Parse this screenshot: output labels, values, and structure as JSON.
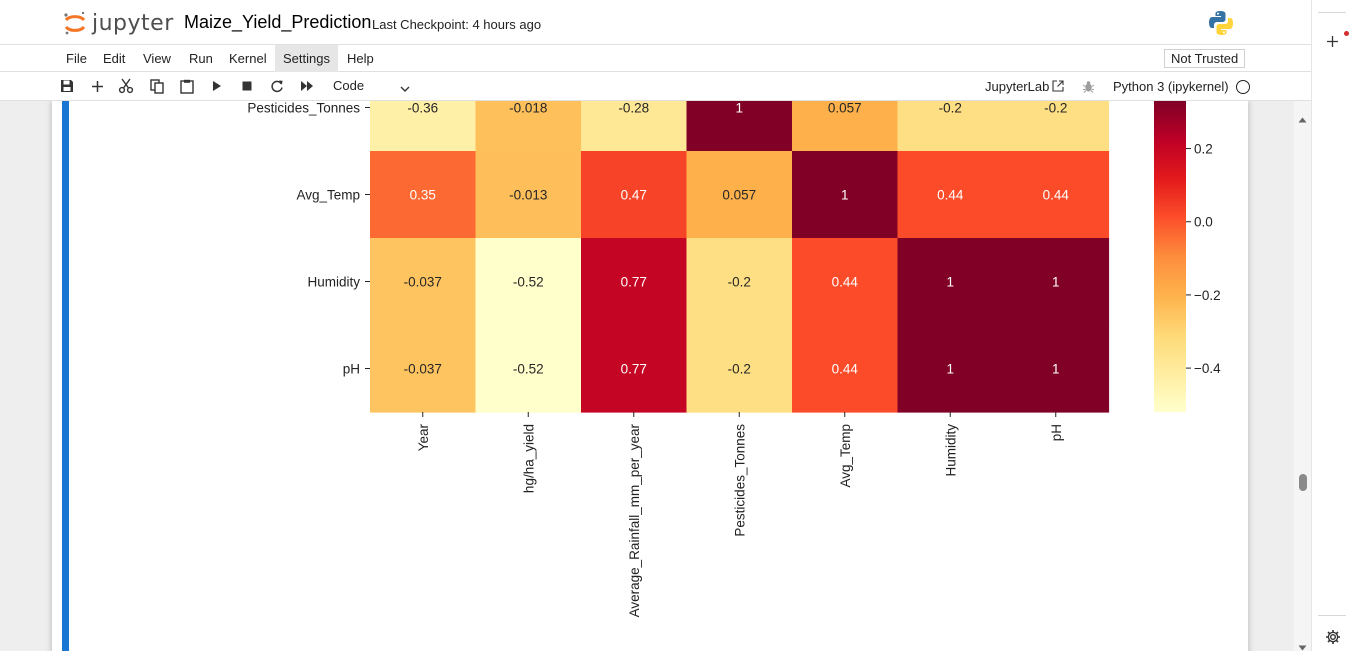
{
  "header": {
    "brand": "jupyter",
    "notebook_title": "Maize_Yield_Prediction",
    "checkpoint": "Last Checkpoint: 4 hours ago",
    "trust_status": "Not Trusted"
  },
  "menu": {
    "items": [
      "File",
      "Edit",
      "View",
      "Run",
      "Kernel",
      "Settings",
      "Help"
    ],
    "active": "Settings"
  },
  "toolbar": {
    "buttons": [
      "save-icon",
      "add-icon",
      "cut-icon",
      "copy-icon",
      "paste-icon",
      "run-icon",
      "stop-icon",
      "restart-icon",
      "fast-forward-icon"
    ],
    "cell_type": "Code",
    "jupyterlab_link": "JupyterLab",
    "kernel_name": "Python 3 (ipykernel)"
  },
  "colors": {
    "accent": "#1976d2",
    "cmap_low": "#ffffcc",
    "cmap_high": "#800026"
  },
  "chart_data": {
    "type": "heatmap",
    "colormap": "YlOrRd",
    "vmin": -0.52,
    "vmax": 1,
    "row_labels": [
      "Pesticides_Tonnes",
      "Avg_Temp",
      "Humidity",
      "pH"
    ],
    "column_labels": [
      "Year",
      "hg/ha_yield",
      "Average_Rainfall_mm_per_year",
      "Pesticides_Tonnes",
      "Avg_Temp",
      "Humidity",
      "pH"
    ],
    "cell_labels": [
      [
        "-0.36",
        "-0.018",
        "-0.28",
        "1",
        "0.057",
        "-0.2",
        "-0.2"
      ],
      [
        "0.35",
        "-0.013",
        "0.47",
        "0.057",
        "1",
        "0.44",
        "0.44"
      ],
      [
        "-0.037",
        "-0.52",
        "0.77",
        "-0.2",
        "0.44",
        "1",
        "1"
      ],
      [
        "-0.037",
        "-0.52",
        "0.77",
        "-0.2",
        "0.44",
        "1",
        "1"
      ]
    ],
    "colorbar_ticks": [
      "0.2",
      "0.0",
      "−0.2",
      "−0.4"
    ],
    "colorbar_tick_values": [
      0.2,
      0.0,
      -0.2,
      -0.4
    ]
  }
}
